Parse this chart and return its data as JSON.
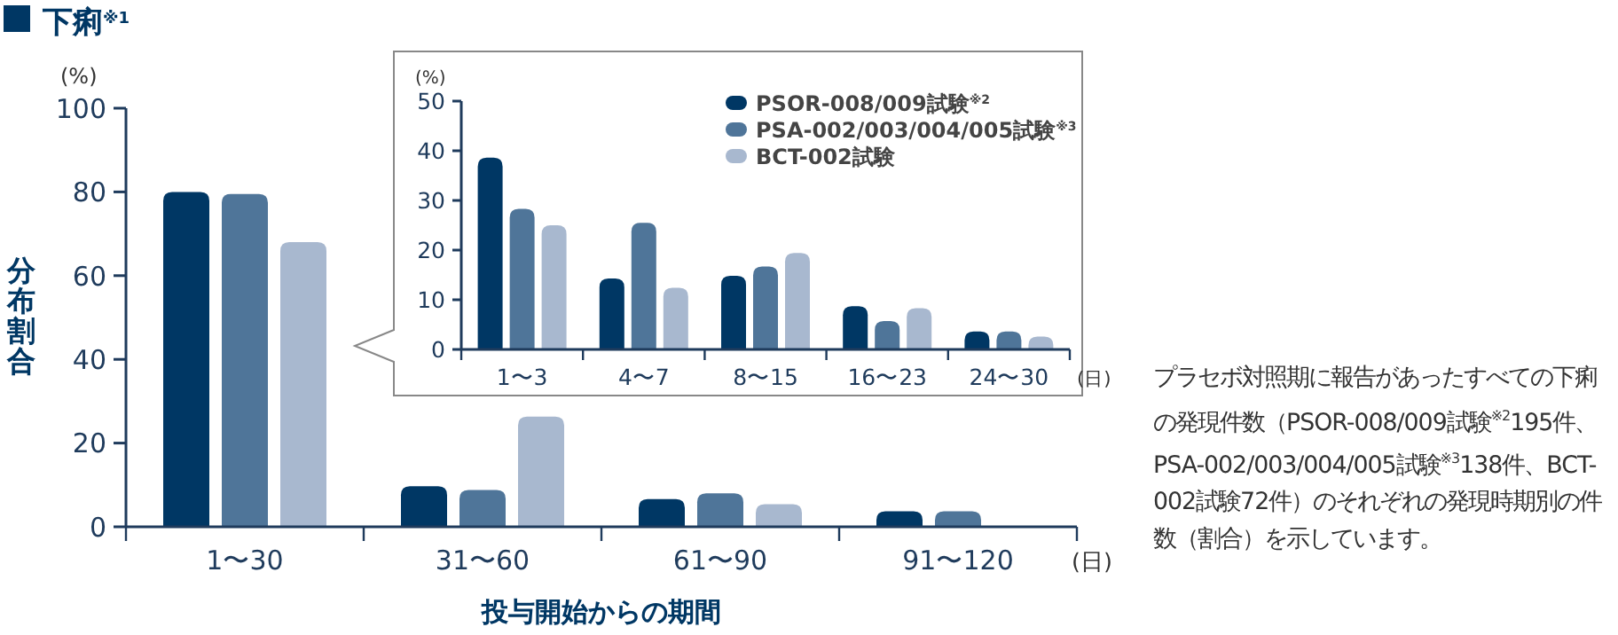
{
  "chart_data": [
    {
      "type": "bar",
      "title": "下痢$^{※1}$",
      "xlabel": "投与開始からの期間",
      "ylabel": "分布割合",
      "categories": [
        "1〜30",
        "31〜60",
        "61〜90",
        "91〜120"
      ],
      "series": [
        {
          "color": "#003764",
          "values": [
            80,
            9.7,
            6.6,
            3.7
          ]
        },
        {
          "color": "#4f7599",
          "values": [
            79.5,
            8.8,
            8,
            3.7
          ]
        },
        {
          "color": "#a8b8cf",
          "values": [
            68,
            26.3,
            5.4,
            null
          ]
        }
      ],
      "ylim": [
        0,
        100
      ],
      "yticks": [
        0,
        20,
        40,
        60,
        80,
        100
      ],
      "annotations": [
        "(%)",
        "(日)",
        "プラセボ対照期に報告があったすべての下痢の発現件数（PSOR-008/009試験$^{※2}$195件、PSA-002/003/004/005試験$^{※3}$138件、BCT-002試験72件）のそれぞれの発現時期別の件数（割合）を示しています。"
      ]
    },
    {
      "type": "bar",
      "categories": [
        "1〜3",
        "4〜7",
        "8〜15",
        "16〜23",
        "24〜30"
      ],
      "series": [
        {
          "name": "PSOR-008/009試験$^{※2}$",
          "color": "#003764",
          "values": [
            38.6,
            14.3,
            14.8,
            8.7,
            3.6
          ]
        },
        {
          "name": "PSA-002/003/004/005試験$^{※3}$",
          "color": "#4f7599",
          "values": [
            28.3,
            25.5,
            16.7,
            5.7,
            3.6
          ]
        },
        {
          "name": "BCT-002試験",
          "color": "#a8b8cf",
          "values": [
            25,
            12.4,
            19.4,
            8.3,
            2.6
          ]
        }
      ],
      "ylim": [
        0,
        50
      ],
      "yticks": [
        0,
        10,
        20,
        30,
        40,
        50
      ],
      "legend": "top right",
      "annotations": [
        "(%)",
        "(日)"
      ]
    }
  ]
}
